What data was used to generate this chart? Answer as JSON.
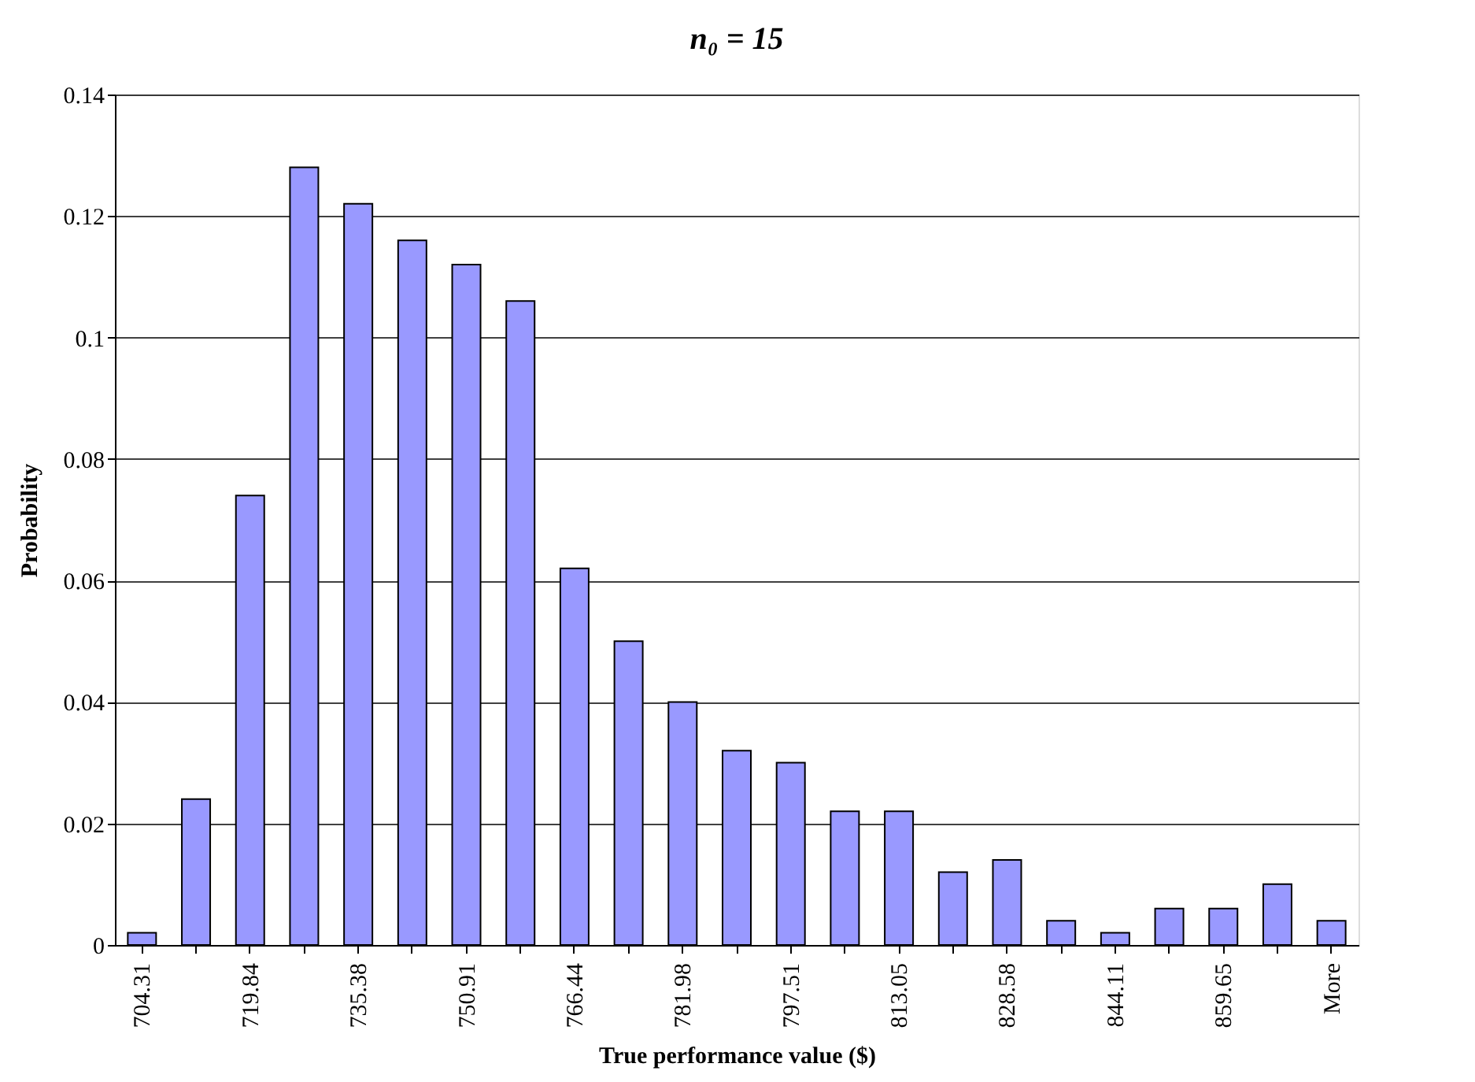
{
  "chart_data": {
    "type": "bar",
    "title": "n₀ = 15",
    "xlabel": "True performance value ($)",
    "ylabel": "Probability",
    "categories": [
      "704.31",
      null,
      "719.84",
      null,
      "735.38",
      null,
      "750.91",
      null,
      "766.44",
      null,
      "781.98",
      null,
      "797.51",
      null,
      "813.05",
      null,
      "828.58",
      null,
      "844.11",
      null,
      "859.65",
      null,
      "More"
    ],
    "values": [
      0.002,
      0.024,
      0.074,
      0.128,
      0.122,
      0.116,
      0.112,
      0.106,
      0.062,
      0.05,
      0.04,
      0.032,
      0.03,
      0.022,
      0.022,
      0.012,
      0.014,
      0.004,
      0.002,
      0.006,
      0.006,
      0.01,
      0.004
    ],
    "color": "#9999ff",
    "ylim": [
      0,
      0.14
    ],
    "yticks": [
      0,
      0.02,
      0.04,
      0.06,
      0.08,
      0.1,
      0.12,
      0.14
    ],
    "grid": "y"
  }
}
